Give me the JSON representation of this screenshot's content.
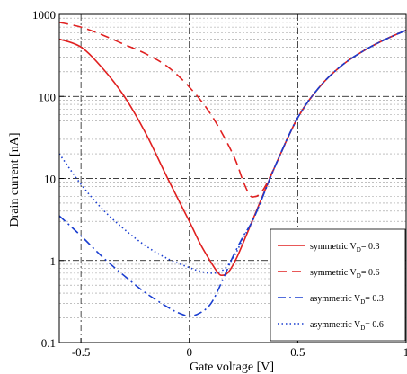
{
  "chart_data": {
    "type": "line",
    "title": "",
    "xlabel": "Gate voltage [V]",
    "ylabel": "Drain current [nA]",
    "xlim": [
      -0.6,
      1.0
    ],
    "ylim": [
      0.1,
      1000
    ],
    "yscale": "log",
    "x_ticks": [
      -0.5,
      0,
      0.5,
      1
    ],
    "x_tick_labels": [
      "-0.5",
      "0",
      "0.5",
      "1"
    ],
    "y_ticks": [
      0.1,
      1,
      10,
      100,
      1000
    ],
    "y_tick_labels": [
      "0.1",
      "1",
      "10",
      "100",
      "1000"
    ],
    "grid": true,
    "legend_position": "bottom-right",
    "series": [
      {
        "name": "symmetric",
        "vd_label": "V",
        "vd_sub": "D",
        "vd_value": "= 0.3",
        "color": "#e02020",
        "dash": "solid",
        "x": [
          -0.6,
          -0.5,
          -0.4,
          -0.3,
          -0.2,
          -0.1,
          0.0,
          0.05,
          0.1,
          0.13,
          0.15,
          0.18,
          0.22,
          0.3,
          0.4,
          0.5,
          0.6,
          0.7,
          0.8,
          0.9,
          1.0
        ],
        "y": [
          500,
          400,
          220,
          100,
          35,
          10,
          3.0,
          1.6,
          0.95,
          0.72,
          0.66,
          0.72,
          1.1,
          3.5,
          15,
          55,
          130,
          235,
          355,
          490,
          640
        ]
      },
      {
        "name": "symmetric",
        "vd_label": "V",
        "vd_sub": "D",
        "vd_value": "= 0.6",
        "color": "#e02020",
        "dash": "long",
        "x": [
          -0.6,
          -0.5,
          -0.4,
          -0.3,
          -0.2,
          -0.1,
          0.0,
          0.1,
          0.2,
          0.25,
          0.28,
          0.3,
          0.32,
          0.35,
          0.4,
          0.5,
          0.6,
          0.7,
          0.8,
          0.9,
          1.0
        ],
        "y": [
          800,
          700,
          560,
          430,
          330,
          230,
          130,
          60,
          20,
          9,
          6.2,
          6.0,
          6.3,
          8,
          15,
          55,
          130,
          235,
          355,
          490,
          640
        ]
      },
      {
        "name": "asymmetric",
        "vd_label": "V",
        "vd_sub": "D",
        "vd_value": "= 0.3",
        "color": "#1a3ed0",
        "dash": "dashdot",
        "x": [
          -0.6,
          -0.5,
          -0.4,
          -0.3,
          -0.2,
          -0.1,
          -0.05,
          0.0,
          0.05,
          0.1,
          0.15,
          0.2,
          0.25,
          0.3,
          0.4,
          0.5,
          0.6,
          0.7,
          0.8,
          0.9,
          1.0
        ],
        "y": [
          3.5,
          2.0,
          1.1,
          0.65,
          0.4,
          0.27,
          0.23,
          0.21,
          0.23,
          0.3,
          0.55,
          1.1,
          2.0,
          3.4,
          15,
          55,
          130,
          235,
          355,
          490,
          640
        ]
      },
      {
        "name": "asymmetric",
        "vd_label": "V",
        "vd_sub": "D",
        "vd_value": "= 0.6",
        "color": "#1a3ed0",
        "dash": "dotted",
        "x": [
          -0.6,
          -0.5,
          -0.4,
          -0.3,
          -0.2,
          -0.1,
          0.0,
          0.05,
          0.1,
          0.15,
          0.2,
          0.25,
          0.3,
          0.4,
          0.5,
          0.6,
          0.7,
          0.8,
          0.9,
          1.0
        ],
        "y": [
          20,
          8.5,
          4.2,
          2.4,
          1.5,
          1.05,
          0.82,
          0.74,
          0.7,
          0.75,
          1.05,
          1.9,
          3.4,
          15,
          55,
          130,
          235,
          355,
          490,
          640
        ]
      }
    ]
  }
}
